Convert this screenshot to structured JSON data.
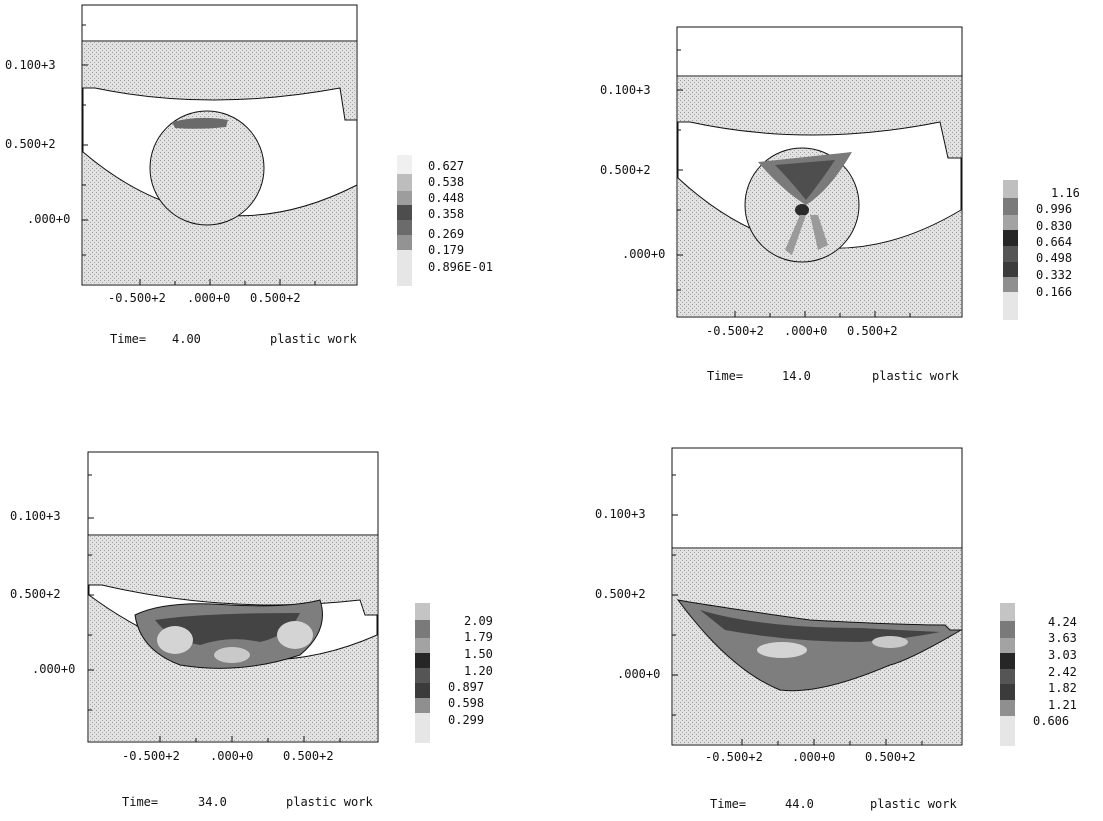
{
  "colors": {
    "background": "#ffffff",
    "ink": "#111111",
    "region": "#d7d7d7",
    "legend": [
      "#f2f2f2",
      "#b5b5b5",
      "#959595",
      "#3a3a3a",
      "#5f5f5f",
      "#7a7a7a",
      "#e8e8e8"
    ]
  },
  "panels": [
    {
      "y_ticks": [
        "0.100+3",
        "0.500+2",
        ".000+0"
      ],
      "x_ticks": [
        "-0.500+2",
        ".000+0",
        "0.500+2"
      ],
      "legend": [
        "0.627",
        "0.538",
        "0.448",
        "0.358",
        "0.269",
        "0.179",
        "0.896E-01"
      ],
      "time_label": "Time=",
      "time_value": "4.00",
      "variable": "plastic work"
    },
    {
      "y_ticks": [
        "0.100+3",
        "0.500+2",
        ".000+0"
      ],
      "x_ticks": [
        "-0.500+2",
        ".000+0",
        "0.500+2"
      ],
      "legend": [
        "1.16",
        "0.996",
        "0.830",
        "0.664",
        "0.498",
        "0.332",
        "0.166"
      ],
      "time_label": "Time=",
      "time_value": "14.0",
      "variable": "plastic work"
    },
    {
      "y_ticks": [
        "0.100+3",
        "0.500+2",
        ".000+0"
      ],
      "x_ticks": [
        "-0.500+2",
        ".000+0",
        "0.500+2"
      ],
      "legend": [
        "2.09",
        "1.79",
        "1.50",
        "1.20",
        "0.897",
        "0.598",
        "0.299"
      ],
      "time_label": "Time=",
      "time_value": "34.0",
      "variable": "plastic work"
    },
    {
      "y_ticks": [
        "0.100+3",
        "0.500+2",
        ".000+0"
      ],
      "x_ticks": [
        "-0.500+2",
        ".000+0",
        "0.500+2"
      ],
      "legend": [
        "4.24",
        "3.63",
        "3.03",
        "2.42",
        "1.82",
        "1.21",
        "0.606"
      ],
      "time_label": "Time=",
      "time_value": "44.0",
      "variable": "plastic work"
    }
  ]
}
